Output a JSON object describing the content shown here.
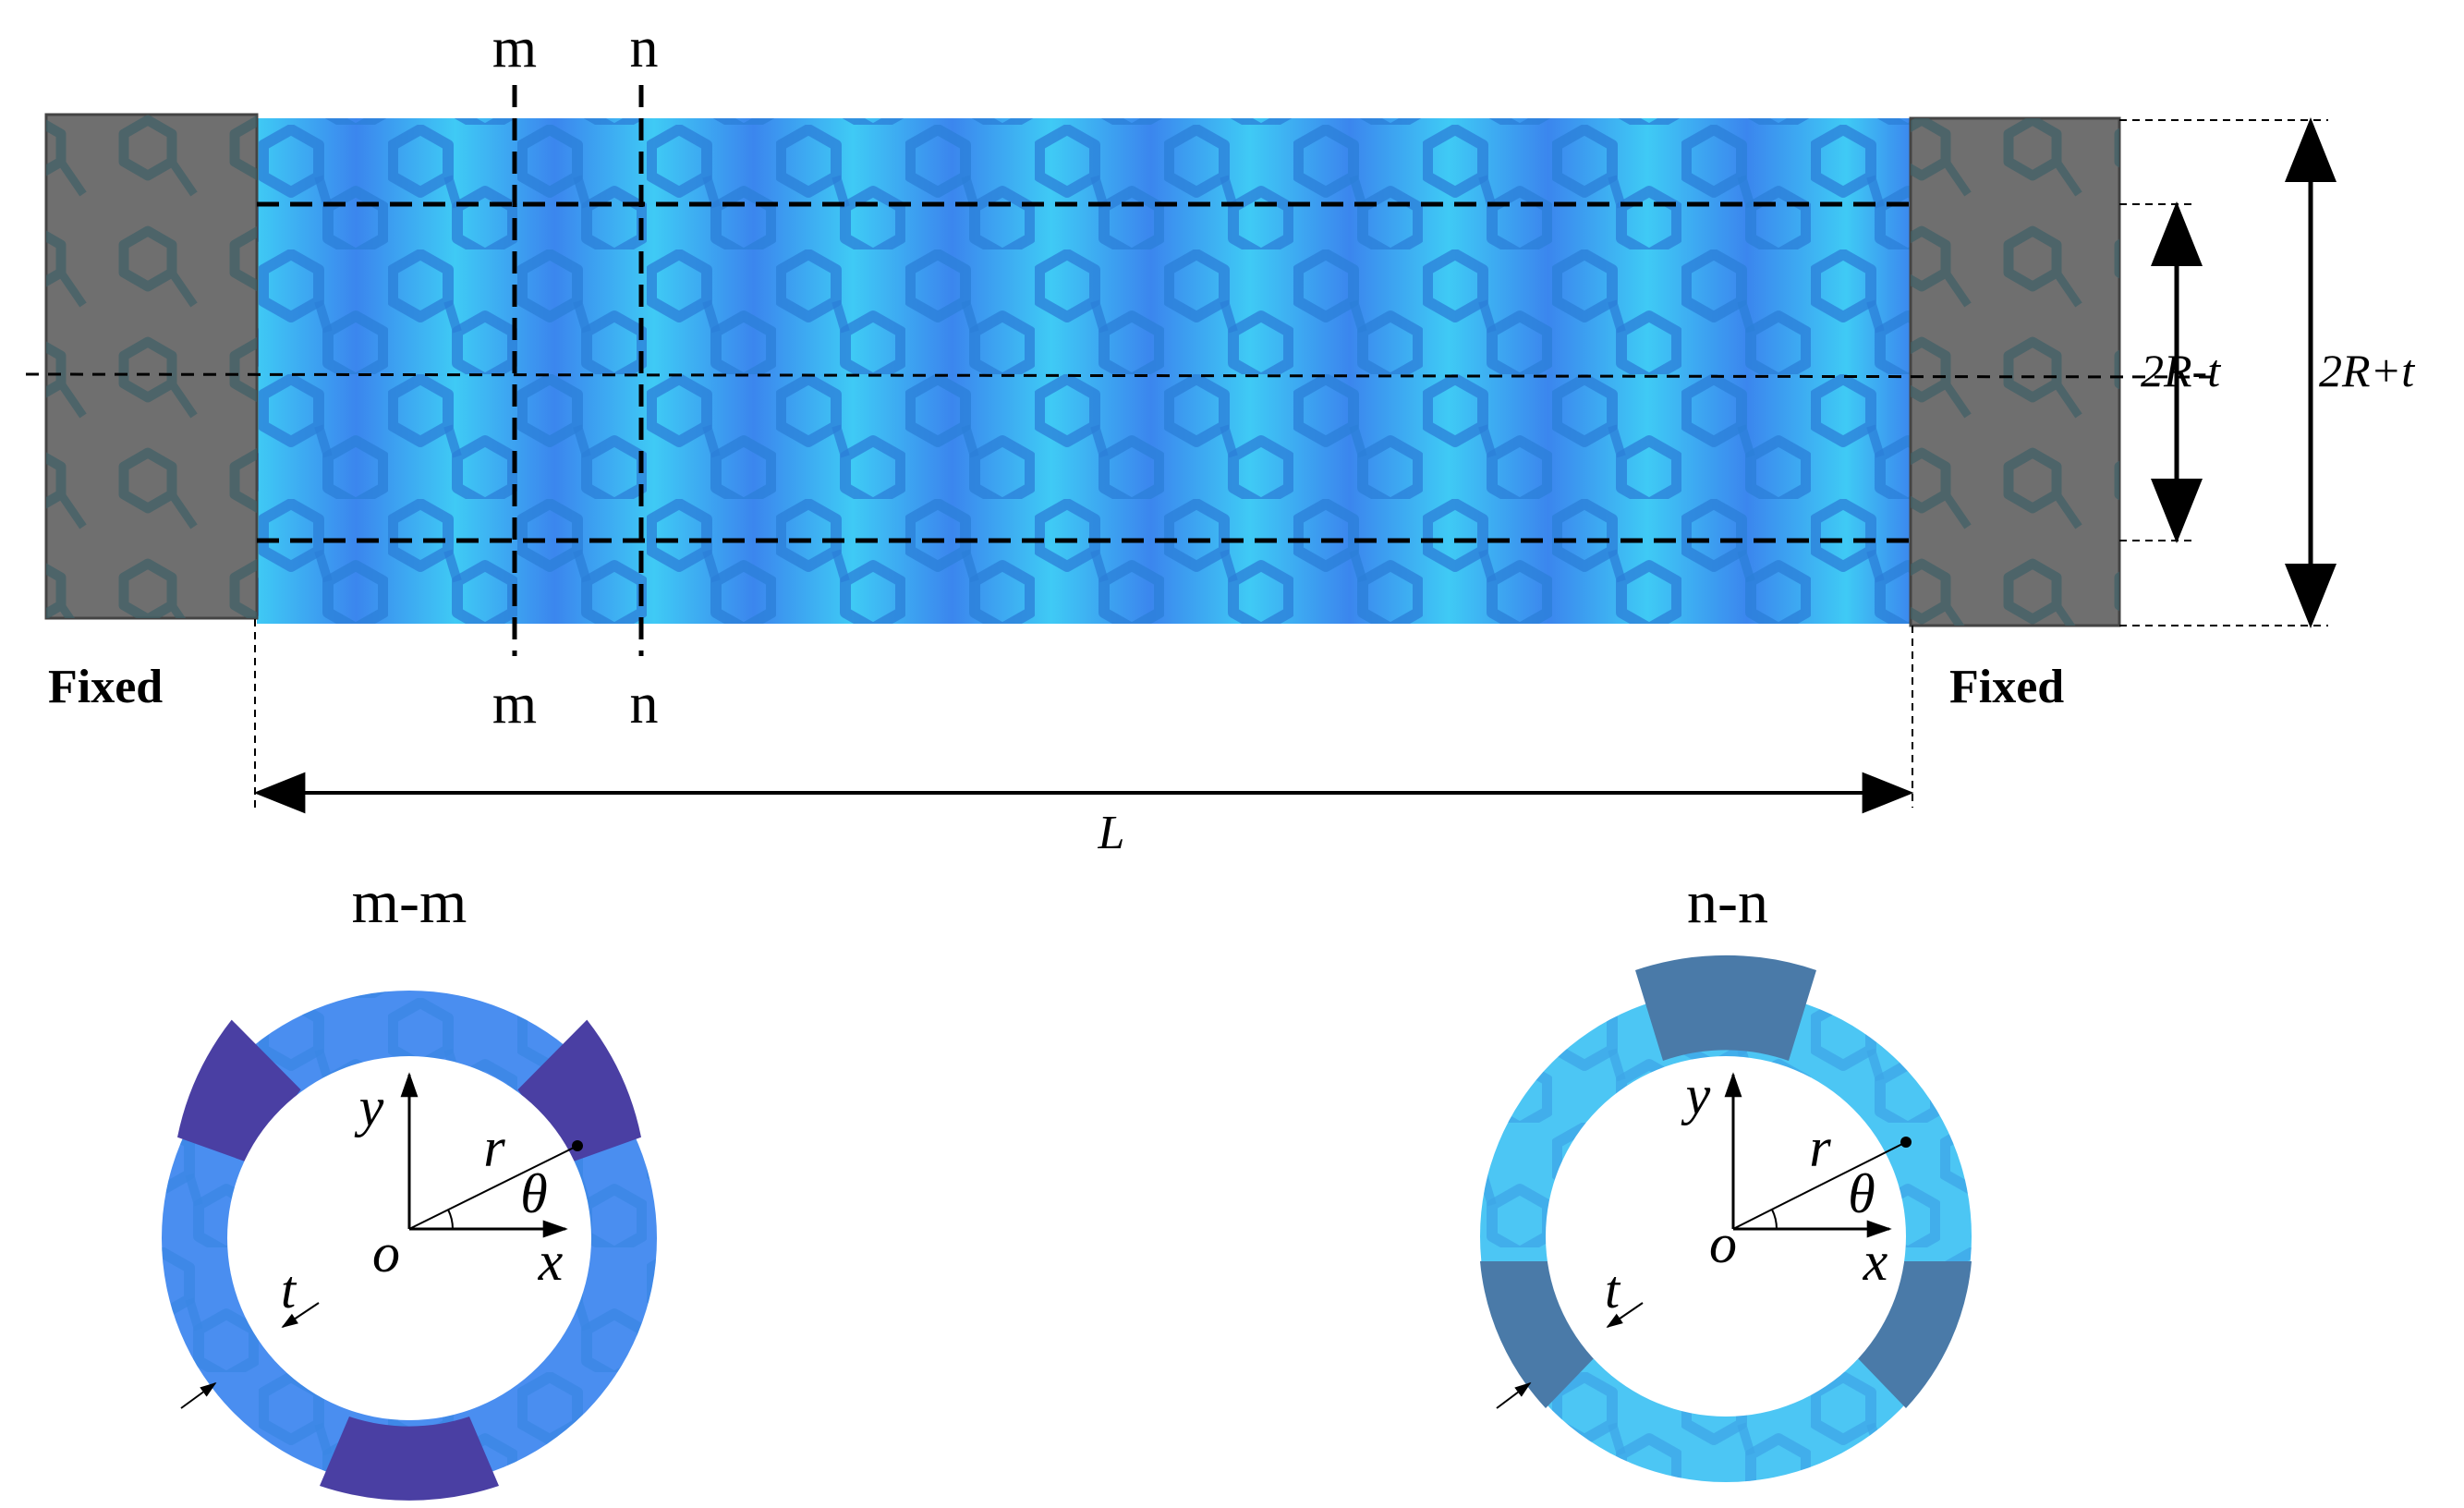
{
  "section_lines": {
    "m": {
      "top_label": "m",
      "bottom_label": "m"
    },
    "n": {
      "top_label": "n",
      "bottom_label": "n"
    }
  },
  "fixed_labels": {
    "left": "Fixed",
    "right": "Fixed"
  },
  "dimensions": {
    "length": "L",
    "inner": "2R-t",
    "outer": "2R+t"
  },
  "sections": [
    {
      "title": "m-m",
      "y": "y",
      "x": "x",
      "o": "o",
      "r": "r",
      "theta": "θ",
      "t": "t",
      "ring_color": "#4a8ef0",
      "patch_color": "#4a3fa3"
    },
    {
      "title": "n-n",
      "y": "y",
      "x": "x",
      "o": "o",
      "r": "r",
      "theta": "θ",
      "t": "t",
      "ring_color": "#4cc6f4",
      "patch_color": "#4a7aa8"
    }
  ],
  "colors": {
    "tube_blue": "#3b8ef0",
    "tube_cyan": "#3fd0f6",
    "fixed_gray": "#6f6f6f",
    "molecule": "#2f6fd6"
  }
}
